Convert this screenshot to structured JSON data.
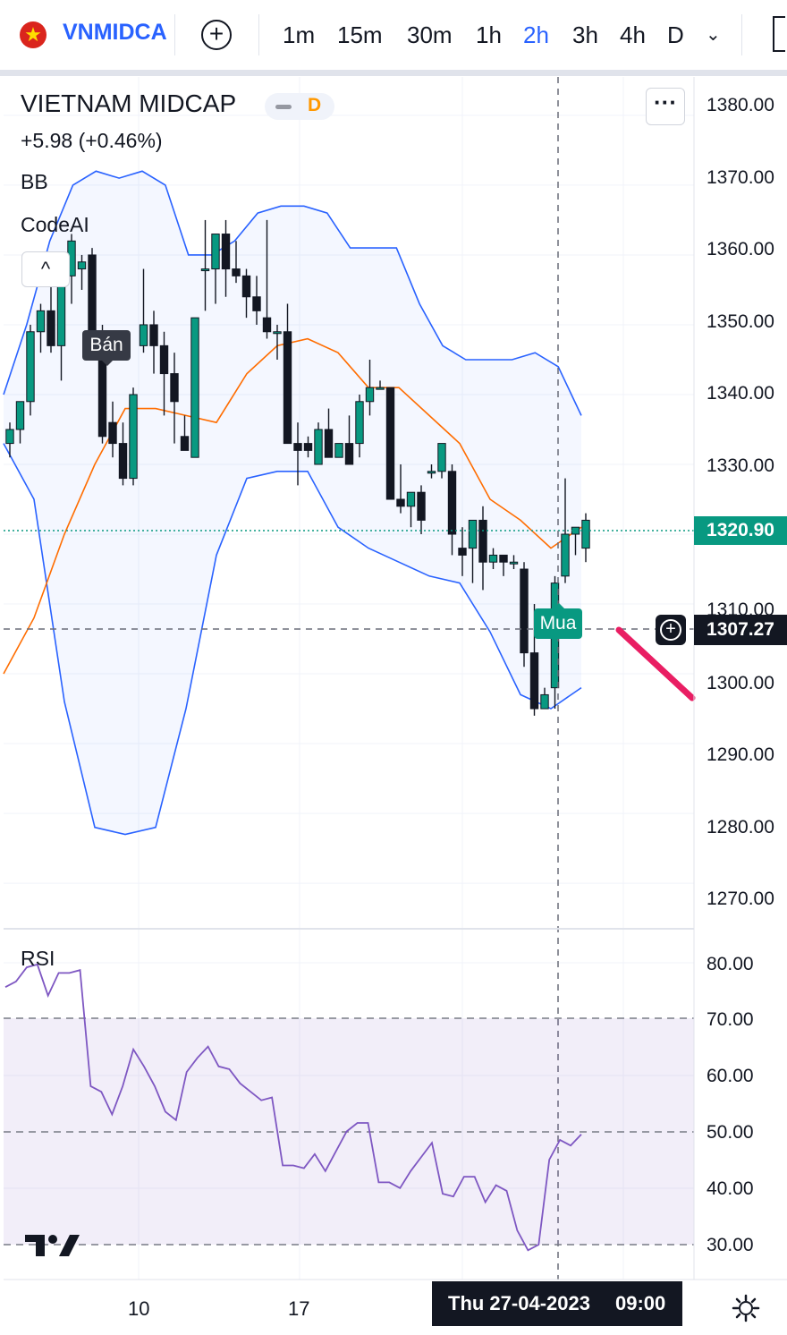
{
  "toolbar": {
    "symbol": "VNMIDCA",
    "flag_star": "★",
    "add_symbol_glyph": "+",
    "intervals": [
      "1m",
      "15m",
      "30m",
      "1h",
      "2h",
      "3h",
      "4h",
      "D"
    ],
    "active_interval": "2h",
    "dropdown_glyph": "⌄"
  },
  "legend": {
    "title": "VIETNAM MIDCAP",
    "session_badge": "D",
    "change": "+5.98 (+0.46%)",
    "indicator_bb": "BB",
    "indicator_codeai": "CodeAI",
    "collapse_glyph": "^",
    "more_glyph": "···"
  },
  "price_axis": {
    "labels": [
      "1380.00",
      "1370.00",
      "1360.00",
      "1350.00",
      "1340.00",
      "1330.00",
      "1320.00",
      "1310.00",
      "1300.00",
      "1290.00",
      "1280.00",
      "1270.00"
    ],
    "last_price": "1320.90",
    "crosshair_price": "1307.27",
    "last_price_color": "#089981"
  },
  "signals": {
    "sell": "Bán",
    "buy": "Mua"
  },
  "rsi": {
    "label": "RSI",
    "axis_labels": [
      "80.00",
      "70.00",
      "60.00",
      "50.00",
      "40.00",
      "30.00"
    ],
    "band_color": "#ede7f6",
    "line_color": "#7e57c2",
    "values": [
      75.5,
      76.5,
      79,
      79.5,
      74,
      78,
      78,
      78.5,
      58,
      57,
      53,
      58,
      64.5,
      61.5,
      58,
      53.5,
      52,
      60.5,
      63,
      65,
      61.5,
      61,
      58.5,
      57,
      55.5,
      56,
      44,
      44,
      43.5,
      46,
      43,
      46.5,
      50,
      51.5,
      51.5,
      41,
      41,
      40,
      43,
      45.5,
      48,
      39,
      38.5,
      42,
      42,
      37.5,
      40.5,
      39.5,
      32.5,
      29,
      30,
      45,
      48.5,
      47.5,
      49.5
    ]
  },
  "time_axis": {
    "labels": [
      "10",
      "17"
    ],
    "crosshair_date": "Thu 27-04-2023",
    "crosshair_time": "09:00"
  },
  "chart_data": {
    "type": "candlestick",
    "title": "VIETNAM MIDCAP",
    "ylim": [
      1264.5,
      1385.5
    ],
    "up_color": "#089981",
    "down_color": "#131722",
    "candles": [
      {
        "o": 1333,
        "h": 1336,
        "l": 1331,
        "c": 1335
      },
      {
        "o": 1335,
        "h": 1339,
        "l": 1333,
        "c": 1339
      },
      {
        "o": 1339,
        "h": 1350,
        "l": 1337,
        "c": 1349
      },
      {
        "o": 1349,
        "h": 1353,
        "l": 1346,
        "c": 1352
      },
      {
        "o": 1352,
        "h": 1356,
        "l": 1346,
        "c": 1347
      },
      {
        "o": 1347,
        "h": 1358,
        "l": 1342,
        "c": 1357
      },
      {
        "o": 1357,
        "h": 1363,
        "l": 1353,
        "c": 1362
      },
      {
        "o": 1358,
        "h": 1360,
        "l": 1355,
        "c": 1359
      },
      {
        "o": 1360,
        "h": 1361,
        "l": 1348,
        "c": 1348
      },
      {
        "o": 1348,
        "h": 1350,
        "l": 1333,
        "c": 1334
      },
      {
        "o": 1336,
        "h": 1339,
        "l": 1331,
        "c": 1333
      },
      {
        "o": 1333,
        "h": 1336,
        "l": 1327,
        "c": 1328
      },
      {
        "o": 1328,
        "h": 1341,
        "l": 1327,
        "c": 1340
      },
      {
        "o": 1347,
        "h": 1358,
        "l": 1346,
        "c": 1350
      },
      {
        "o": 1350,
        "h": 1352,
        "l": 1343,
        "c": 1347
      },
      {
        "o": 1347,
        "h": 1349,
        "l": 1337,
        "c": 1343
      },
      {
        "o": 1343,
        "h": 1346,
        "l": 1333,
        "c": 1339
      },
      {
        "o": 1334,
        "h": 1337,
        "l": 1332,
        "c": 1332
      },
      {
        "o": 1331,
        "h": 1351,
        "l": 1331,
        "c": 1351
      },
      {
        "o": 1358,
        "h": 1365,
        "l": 1352,
        "c": 1358
      },
      {
        "o": 1358,
        "h": 1363,
        "l": 1353,
        "c": 1363
      },
      {
        "o": 1363,
        "h": 1365,
        "l": 1354,
        "c": 1358
      },
      {
        "o": 1358,
        "h": 1362,
        "l": 1356,
        "c": 1357
      },
      {
        "o": 1357,
        "h": 1358,
        "l": 1351,
        "c": 1354
      },
      {
        "o": 1354,
        "h": 1357,
        "l": 1350,
        "c": 1352
      },
      {
        "o": 1351,
        "h": 1365,
        "l": 1348,
        "c": 1349
      },
      {
        "o": 1349,
        "h": 1350,
        "l": 1345,
        "c": 1349
      },
      {
        "o": 1349,
        "h": 1353,
        "l": 1333,
        "c": 1333
      },
      {
        "o": 1333,
        "h": 1336,
        "l": 1327,
        "c": 1332
      },
      {
        "o": 1333,
        "h": 1334,
        "l": 1331,
        "c": 1332
      },
      {
        "o": 1330,
        "h": 1336,
        "l": 1330,
        "c": 1335
      },
      {
        "o": 1335,
        "h": 1338,
        "l": 1331,
        "c": 1331
      },
      {
        "o": 1331,
        "h": 1333,
        "l": 1331,
        "c": 1333
      },
      {
        "o": 1333,
        "h": 1337,
        "l": 1330,
        "c": 1330
      },
      {
        "o": 1333,
        "h": 1340,
        "l": 1331,
        "c": 1339
      },
      {
        "o": 1339,
        "h": 1345,
        "l": 1337,
        "c": 1341
      },
      {
        "o": 1341,
        "h": 1342,
        "l": 1341,
        "c": 1341
      },
      {
        "o": 1341,
        "h": 1341,
        "l": 1325,
        "c": 1325
      },
      {
        "o": 1325,
        "h": 1330,
        "l": 1323,
        "c": 1324
      },
      {
        "o": 1324,
        "h": 1326,
        "l": 1321,
        "c": 1326
      },
      {
        "o": 1326,
        "h": 1327,
        "l": 1320,
        "c": 1322
      },
      {
        "o": 1329,
        "h": 1330,
        "l": 1328,
        "c": 1329
      },
      {
        "o": 1329,
        "h": 1333,
        "l": 1328,
        "c": 1333
      },
      {
        "o": 1329,
        "h": 1330,
        "l": 1317,
        "c": 1320
      },
      {
        "o": 1318,
        "h": 1321,
        "l": 1314,
        "c": 1317
      },
      {
        "o": 1318,
        "h": 1322,
        "l": 1313,
        "c": 1322
      },
      {
        "o": 1322,
        "h": 1324,
        "l": 1312,
        "c": 1316
      },
      {
        "o": 1316,
        "h": 1318,
        "l": 1315,
        "c": 1317
      },
      {
        "o": 1317,
        "h": 1317,
        "l": 1314,
        "c": 1316
      },
      {
        "o": 1316,
        "h": 1317,
        "l": 1315,
        "c": 1316
      },
      {
        "o": 1315,
        "h": 1316,
        "l": 1301,
        "c": 1303
      },
      {
        "o": 1303,
        "h": 1310,
        "l": 1294,
        "c": 1295
      },
      {
        "o": 1295,
        "h": 1298,
        "l": 1295,
        "c": 1297
      },
      {
        "o": 1298,
        "h": 1314,
        "l": 1295,
        "c": 1313
      },
      {
        "o": 1314,
        "h": 1328,
        "l": 1313,
        "c": 1320
      },
      {
        "o": 1320,
        "h": 1321,
        "l": 1317,
        "c": 1321
      },
      {
        "o": 1318,
        "h": 1323,
        "l": 1316,
        "c": 1322
      }
    ],
    "bb_upper": [
      1340,
      1350,
      1362,
      1370,
      1372,
      1371,
      1372,
      1370,
      1360,
      1360,
      1362,
      1366,
      1367,
      1367,
      1366,
      1361,
      1361,
      1361,
      1353,
      1347,
      1345,
      1345,
      1345,
      1346,
      1344,
      1337
    ],
    "bb_basis": [
      1300,
      1308,
      1320,
      1330,
      1338,
      1338,
      1337,
      1336,
      1343,
      1347,
      1348,
      1346,
      1341,
      1341,
      1337,
      1333,
      1325,
      1322,
      1318,
      1321
    ],
    "bb_lower": [
      1333,
      1325,
      1296,
      1278,
      1277,
      1278,
      1295,
      1317,
      1328,
      1329,
      1329,
      1321,
      1318,
      1316,
      1314,
      1313,
      1306,
      1297,
      1295,
      1298
    ],
    "rsi_levels": [
      30,
      50,
      70
    ]
  }
}
